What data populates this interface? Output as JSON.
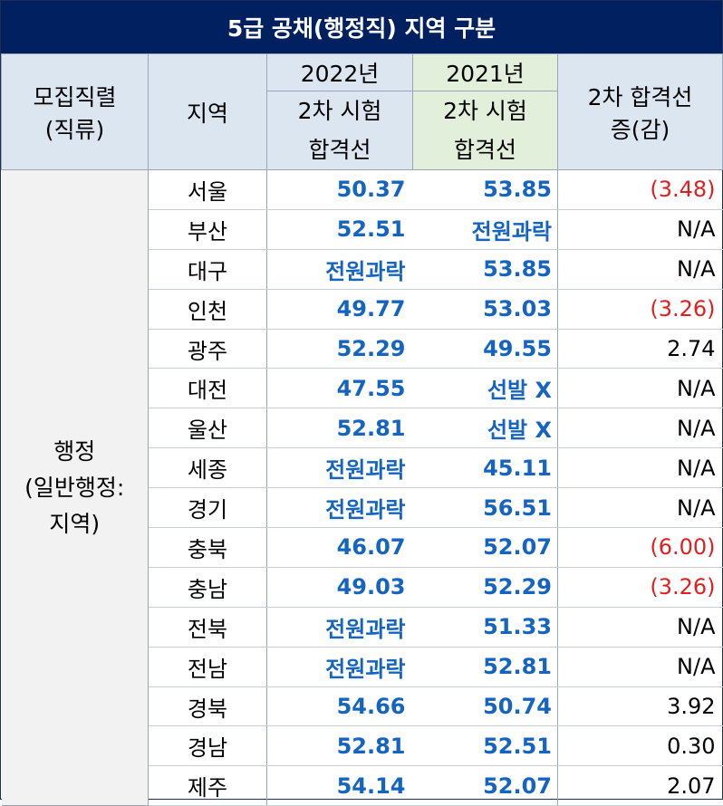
{
  "title": "5급 공채(행정직) 지역 구분",
  "header": {
    "category_line1": "모집직렬",
    "category_line2": "(직류)",
    "region": "지역",
    "year2022": "2022년",
    "year2021": "2021년",
    "cutoff_line1": "2차 시험",
    "cutoff_line2": "합격선",
    "diff_line1": "2차 합격선",
    "diff_line2": "증(감)"
  },
  "category": {
    "line1": "행정",
    "line2": "(일반행정:",
    "line3": "지역)"
  },
  "rows": [
    {
      "region": "서울",
      "y2022": "50.37",
      "y2021": "53.85",
      "diff": "(3.48)",
      "neg": true
    },
    {
      "region": "부산",
      "y2022": "52.51",
      "y2021": "전원과락",
      "diff": "N/A",
      "neg": false
    },
    {
      "region": "대구",
      "y2022": "전원과락",
      "y2021": "53.85",
      "diff": "N/A",
      "neg": false
    },
    {
      "region": "인천",
      "y2022": "49.77",
      "y2021": "53.03",
      "diff": "(3.26)",
      "neg": true
    },
    {
      "region": "광주",
      "y2022": "52.29",
      "y2021": "49.55",
      "diff": "2.74",
      "neg": false
    },
    {
      "region": "대전",
      "y2022": "47.55",
      "y2021": "선발 X",
      "diff": "N/A",
      "neg": false
    },
    {
      "region": "울산",
      "y2022": "52.81",
      "y2021": "선발 X",
      "diff": "N/A",
      "neg": false
    },
    {
      "region": "세종",
      "y2022": "전원과락",
      "y2021": "45.11",
      "diff": "N/A",
      "neg": false
    },
    {
      "region": "경기",
      "y2022": "전원과락",
      "y2021": "56.51",
      "diff": "N/A",
      "neg": false
    },
    {
      "region": "충북",
      "y2022": "46.07",
      "y2021": "52.07",
      "diff": "(6.00)",
      "neg": true
    },
    {
      "region": "충남",
      "y2022": "49.03",
      "y2021": "52.29",
      "diff": "(3.26)",
      "neg": true
    },
    {
      "region": "전북",
      "y2022": "전원과락",
      "y2021": "51.33",
      "diff": "N/A",
      "neg": false
    },
    {
      "region": "전남",
      "y2022": "전원과락",
      "y2021": "52.81",
      "diff": "N/A",
      "neg": false
    },
    {
      "region": "경북",
      "y2022": "54.66",
      "y2021": "50.74",
      "diff": "3.92",
      "neg": false
    },
    {
      "region": "경남",
      "y2022": "52.81",
      "y2021": "52.51",
      "diff": "0.30",
      "neg": false
    },
    {
      "region": "제주",
      "y2022": "54.14",
      "y2021": "52.07",
      "diff": "2.07",
      "neg": false
    }
  ],
  "colors": {
    "title_bg": "#002060",
    "header_bg": "#dce6f1",
    "header_2021_bg": "#e2efda",
    "value_blue": "#1565c0",
    "negative_red": "#e02020",
    "category_bg": "#f2f2f2"
  }
}
